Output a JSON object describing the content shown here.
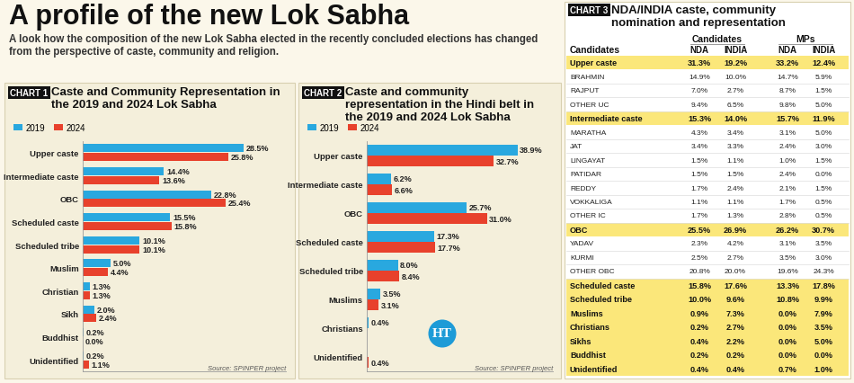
{
  "header": {
    "title": "A profile of the new Lok Sabha",
    "subtitle": "A look how the composition of the new Lok Sabha elected in the recently concluded elections has changed from the perspective of caste, community and religion."
  },
  "logo": "HT",
  "chart_data": [
    {
      "tag": "CHART 1",
      "type": "bar",
      "title": "Caste and Community Representation in the 2019 and 2024 Lok Sabha",
      "source": "Source: SPINPER project",
      "orientation": "horizontal",
      "data_labels": true,
      "tick_labels": "y",
      "legend": "upper left",
      "xlim": [
        0,
        36
      ],
      "xticks": [],
      "categories": [
        "Upper caste",
        "Intermediate caste",
        "OBC",
        "Scheduled caste",
        "Scheduled tribe",
        "Muslim",
        "Christian",
        "Sikh",
        "Buddhist",
        "Unidentified"
      ],
      "series": [
        {
          "name": "2019",
          "color": "#29a8df",
          "values": [
            28.5,
            14.4,
            22.8,
            15.5,
            10.1,
            5.0,
            1.3,
            2.0,
            0.2,
            0.2
          ],
          "value_labels": [
            "28.5%",
            "14.4%",
            "22.8%",
            "15.5%",
            "10.1%",
            "5.0%",
            "1.3%",
            "2.0%",
            "0.2%",
            "0.2%"
          ]
        },
        {
          "name": "2024",
          "color": "#e8412c",
          "values": [
            25.8,
            13.6,
            25.4,
            15.8,
            10.1,
            4.4,
            1.3,
            2.4,
            0.0,
            1.1
          ],
          "value_labels": [
            "25.8%",
            "13.6%",
            "25.4%",
            "15.8%",
            "10.1%",
            "4.4%",
            "1.3%",
            "2.4%",
            "0.0%",
            "1.1%"
          ]
        }
      ]
    },
    {
      "tag": "CHART 2",
      "type": "bar",
      "title": "Caste and community representation in the Hindi belt in the 2019 and 2024 Lok Sabha",
      "source": "Source: SPINPER project",
      "orientation": "horizontal",
      "data_labels": true,
      "tick_labels": "y",
      "legend": "upper left",
      "xlim": [
        0,
        48
      ],
      "xticks": [],
      "categories": [
        "Upper caste",
        "Intermediate caste",
        "OBC",
        "Scheduled caste",
        "Scheduled tribe",
        "Muslims",
        "Christians",
        "Unidentified"
      ],
      "series": [
        {
          "name": "2019",
          "color": "#29a8df",
          "values": [
            38.9,
            6.2,
            25.7,
            17.3,
            8.0,
            3.5,
            0.4,
            null
          ],
          "value_labels": [
            "38.9%",
            "6.2%",
            "25.7%",
            "17.3%",
            "8.0%",
            "3.5%",
            "0.4%",
            null
          ]
        },
        {
          "name": "2024",
          "color": "#e8412c",
          "values": [
            32.7,
            6.6,
            31.0,
            17.7,
            8.4,
            3.1,
            null,
            0.4
          ],
          "value_labels": [
            "32.7%",
            "6.6%",
            "31.0%",
            "17.7%",
            "8.4%",
            "3.1%",
            null,
            "0.4%"
          ]
        }
      ]
    }
  ],
  "table": {
    "tag": "CHART 3",
    "title": "NDA/INDIA caste, community nomination and representation",
    "column_groups": [
      "Candidates",
      "MPs"
    ],
    "header": [
      "Candidates",
      "NDA",
      "INDIA",
      "NDA",
      "INDIA"
    ],
    "groups": [
      {
        "row": [
          "Upper caste",
          "31.3%",
          "19.2%",
          "33.2%",
          "12.4%"
        ],
        "rows": [
          [
            "BRAHMIN",
            "14.9%",
            "10.0%",
            "14.7%",
            "5.9%"
          ],
          [
            "RAJPUT",
            "7.0%",
            "2.7%",
            "8.7%",
            "1.5%"
          ],
          [
            "OTHER UC",
            "9.4%",
            "6.5%",
            "9.8%",
            "5.0%"
          ]
        ]
      },
      {
        "row": [
          "Intermediate caste",
          "15.3%",
          "14.0%",
          "15.7%",
          "11.9%"
        ],
        "rows": [
          [
            "MARATHA",
            "4.3%",
            "3.4%",
            "3.1%",
            "5.0%"
          ],
          [
            "JAT",
            "3.4%",
            "3.3%",
            "2.4%",
            "3.0%"
          ],
          [
            "LINGAYAT",
            "1.5%",
            "1.1%",
            "1.0%",
            "1.5%"
          ],
          [
            "PATIDAR",
            "1.5%",
            "1.5%",
            "2.4%",
            "0.0%"
          ],
          [
            "REDDY",
            "1.7%",
            "2.4%",
            "2.1%",
            "1.5%"
          ],
          [
            "VOKKALIGA",
            "1.1%",
            "1.1%",
            "1.7%",
            "0.5%"
          ],
          [
            "OTHER IC",
            "1.7%",
            "1.3%",
            "2.8%",
            "0.5%"
          ]
        ]
      },
      {
        "row": [
          "OBC",
          "25.5%",
          "26.9%",
          "26.2%",
          "30.7%"
        ],
        "rows": [
          [
            "YADAV",
            "2.3%",
            "4.2%",
            "3.1%",
            "3.5%"
          ],
          [
            "KURMI",
            "2.5%",
            "2.7%",
            "3.5%",
            "3.0%"
          ],
          [
            "OTHER OBC",
            "20.8%",
            "20.0%",
            "19.6%",
            "24.3%"
          ]
        ]
      },
      {
        "row": [
          "Scheduled caste",
          "15.8%",
          "17.6%",
          "13.3%",
          "17.8%"
        ],
        "rows": []
      },
      {
        "row": [
          "Scheduled tribe",
          "10.0%",
          "9.6%",
          "10.8%",
          "9.9%"
        ],
        "rows": []
      },
      {
        "row": [
          "Muslims",
          "0.9%",
          "7.3%",
          "0.0%",
          "7.9%"
        ],
        "rows": []
      },
      {
        "row": [
          "Christians",
          "0.2%",
          "2.7%",
          "0.0%",
          "3.5%"
        ],
        "rows": []
      },
      {
        "row": [
          "Sikhs",
          "0.4%",
          "2.2%",
          "0.0%",
          "5.0%"
        ],
        "rows": []
      },
      {
        "row": [
          "Buddhist",
          "0.2%",
          "0.2%",
          "0.0%",
          "0.0%"
        ],
        "rows": []
      },
      {
        "row": [
          "Unidentified",
          "0.4%",
          "0.4%",
          "0.7%",
          "1.0%"
        ],
        "rows": []
      }
    ]
  }
}
